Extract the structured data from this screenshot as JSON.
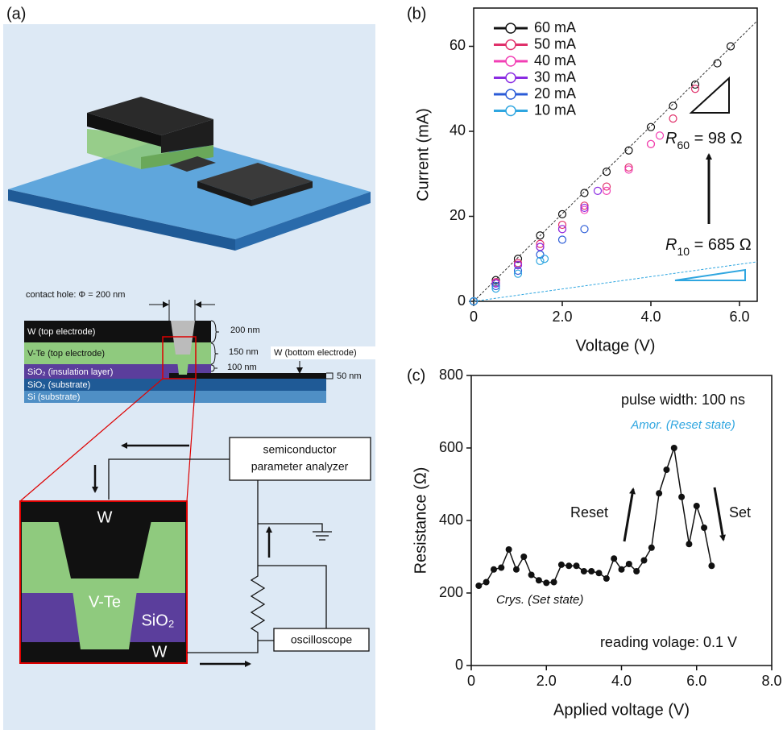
{
  "diagram": {
    "panel_label": "(a)",
    "contact_hole": "contact hole: Φ = 200 nm",
    "layers": [
      "W (top electrode)",
      "V-Te (top electrode)",
      "SiO₂ (insulation layer)",
      "SiO₂ (substrate)",
      "Si (substrate)"
    ],
    "thicknesses": [
      "200 nm",
      "150 nm",
      "100 nm",
      "50 nm"
    ],
    "bottom_electrode": "W (bottom electrode)",
    "analyzer": [
      "semiconductor",
      "parameter analyzer"
    ],
    "oscilloscope": "oscilloscope",
    "zoom_labels": [
      "W",
      "V-Te",
      "SiO₂",
      "W"
    ]
  },
  "chart_data": [
    {
      "type": "scatter",
      "panel_label": "(b)",
      "x_label": "Voltage (V)",
      "y_label": "Current (mA)",
      "xlim": [
        0,
        6.4
      ],
      "xticks": [
        0,
        {
          "value": 2,
          "label": "2.0"
        },
        {
          "value": 4,
          "label": "4.0"
        },
        {
          "value": 6,
          "label": "6.0"
        }
      ],
      "ylim": [
        0,
        69
      ],
      "yticks": [
        0,
        20,
        40,
        60
      ],
      "legend": "upper left",
      "series": [
        {
          "name": "60 mA",
          "color": "#111111",
          "x": [
            0,
            0.5,
            1,
            1.5,
            2,
            2.5,
            3,
            3.5,
            4,
            4.5,
            5,
            5.5,
            5.8
          ],
          "values": [
            0,
            5,
            10,
            15.5,
            20.5,
            25.5,
            30.5,
            35.5,
            41,
            46,
            51,
            56,
            60
          ]
        },
        {
          "name": "50 mA",
          "color": "#e0306a",
          "x": [
            0,
            0.5,
            1,
            1.5,
            2,
            2.5,
            3,
            3.5,
            4,
            4.5,
            5
          ],
          "values": [
            0,
            4.5,
            9,
            13.5,
            18,
            22.5,
            27,
            31.5,
            37,
            43,
            50
          ]
        },
        {
          "name": "40 mA",
          "color": "#f23fb4",
          "x": [
            0,
            0.5,
            1,
            1.5,
            2,
            2.5,
            3,
            3.5,
            4,
            4.2
          ],
          "values": [
            0,
            4.3,
            8.6,
            12.8,
            17,
            21.5,
            26,
            31,
            37,
            39
          ]
        },
        {
          "name": "30 mA",
          "color": "#8a2be2",
          "x": [
            0,
            0.5,
            1,
            1.5,
            2,
            2.5,
            2.8
          ],
          "values": [
            0,
            4.2,
            8.5,
            12.8,
            17,
            22,
            26
          ]
        },
        {
          "name": "20 mA",
          "color": "#2a5bd7",
          "x": [
            0,
            0.5,
            1,
            1.5,
            2,
            2.5
          ],
          "values": [
            0,
            3.6,
            7.2,
            11,
            14.5,
            17
          ]
        },
        {
          "name": "10 mA",
          "color": "#2fa6e0",
          "x": [
            0,
            0.5,
            1,
            1.5,
            1.6
          ],
          "values": [
            0,
            3,
            6.5,
            9.5,
            10
          ]
        }
      ],
      "fit_lines": [
        {
          "color": "#333333",
          "x": [
            0,
            6.4
          ],
          "values": [
            0,
            66
          ]
        },
        {
          "color": "#2fa6e0",
          "x": [
            0,
            6.4
          ],
          "values": [
            0,
            9.3
          ]
        }
      ],
      "annotations": [
        {
          "symbol": "R",
          "subscript": "60",
          "text": " = 98 Ω"
        },
        {
          "symbol": "R",
          "subscript": "10",
          "text": " = 685 Ω"
        }
      ]
    },
    {
      "type": "line",
      "panel_label": "(c)",
      "x_label": "Applied voltage (V)",
      "y_label": "Resistance (Ω)",
      "color": "#111111",
      "xlim": [
        0,
        8
      ],
      "xticks": [
        0,
        {
          "value": 2,
          "label": "2.0"
        },
        {
          "value": 4,
          "label": "4.0"
        },
        {
          "value": 6,
          "label": "6.0"
        },
        {
          "value": 8,
          "label": "8.0"
        }
      ],
      "ylim": [
        0,
        800
      ],
      "yticks": [
        0,
        200,
        400,
        600,
        800
      ],
      "x": [
        0.2,
        0.4,
        0.6,
        0.8,
        1.0,
        1.2,
        1.4,
        1.6,
        1.8,
        2.0,
        2.2,
        2.4,
        2.6,
        2.8,
        3.0,
        3.2,
        3.4,
        3.6,
        3.8,
        4.0,
        4.2,
        4.4,
        4.6,
        4.8,
        5.0,
        5.2,
        5.4,
        5.6,
        5.8,
        6.0,
        6.2,
        6.4
      ],
      "values": [
        220,
        230,
        265,
        270,
        320,
        265,
        300,
        250,
        235,
        228,
        230,
        278,
        275,
        275,
        260,
        260,
        255,
        240,
        295,
        265,
        280,
        260,
        290,
        325,
        475,
        540,
        600,
        465,
        335,
        440,
        380,
        275
      ],
      "annotations": [
        "pulse width: 100 ns",
        "Amor. (Reset state)",
        "Crys. (Set state)",
        "reading volage: 0.1 V",
        "Reset",
        "Set"
      ]
    }
  ]
}
